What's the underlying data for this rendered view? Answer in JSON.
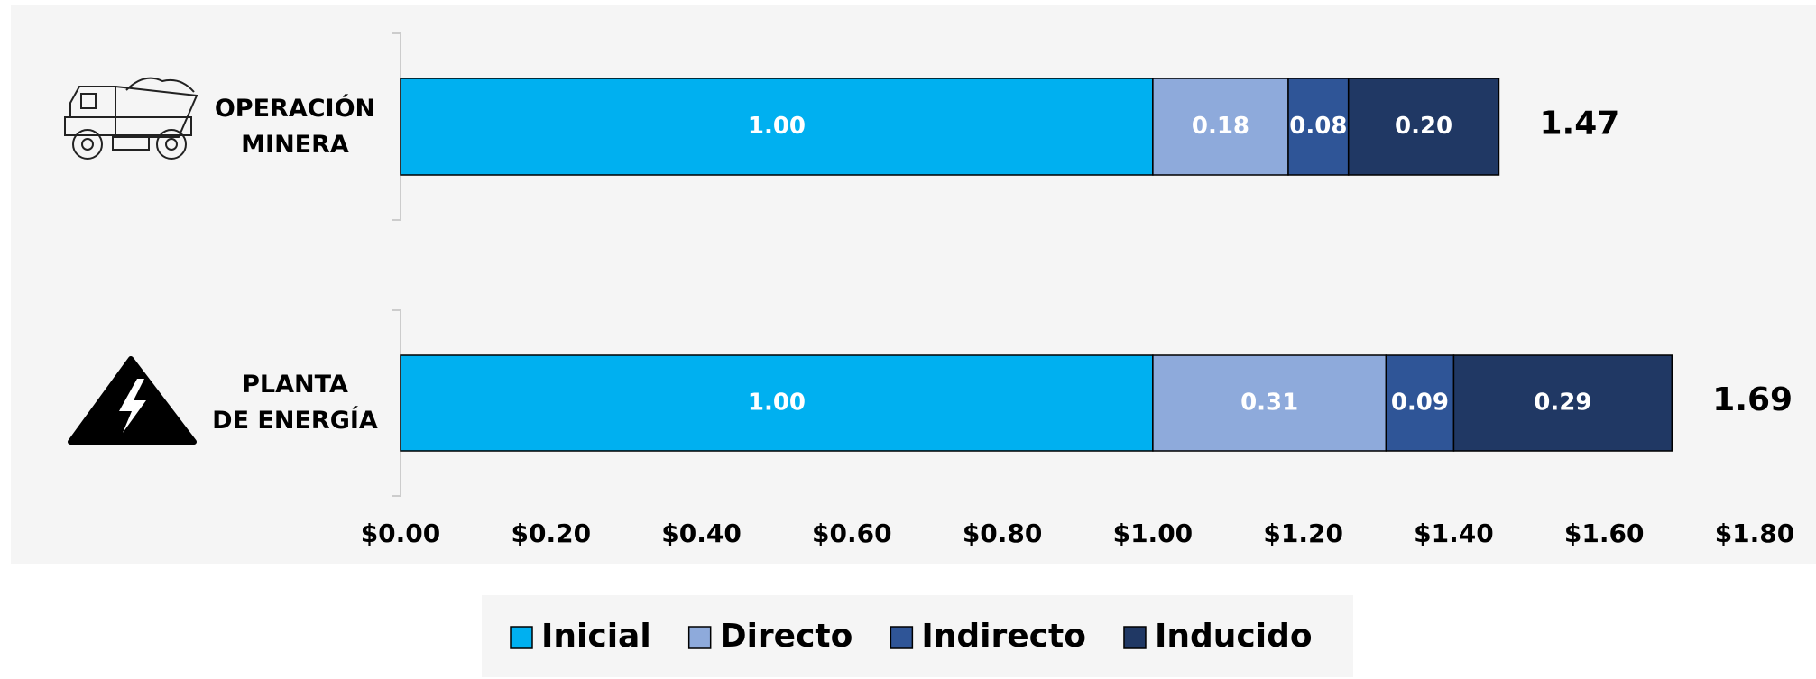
{
  "chart_data": {
    "type": "stacked-barh",
    "categories": [
      "OPERACIÓN\nMINERA",
      "PLANTA\nDE ENERGÍA"
    ],
    "series": [
      {
        "name": "Inicial",
        "color": "#00b0f0",
        "values": [
          1.0,
          1.0
        ],
        "value_labels": [
          "1.00",
          "1.00"
        ]
      },
      {
        "name": "Directo",
        "color": "#8eaadb",
        "values": [
          0.18,
          0.31
        ],
        "value_labels": [
          "0.18",
          "0.31"
        ]
      },
      {
        "name": "Indirecto",
        "color": "#2f5597",
        "values": [
          0.08,
          0.09
        ],
        "value_labels": [
          "0.08",
          "0.09"
        ]
      },
      {
        "name": "Inducido",
        "color": "#203864",
        "values": [
          0.2,
          0.29
        ],
        "value_labels": [
          "0.20",
          "0.29"
        ]
      }
    ],
    "totals": [
      1.47,
      1.69
    ],
    "xlim": [
      0,
      1.8
    ],
    "xticks": [
      {
        "value": 0,
        "label": "$0.00"
      },
      {
        "value": 0.2,
        "label": "$0.20"
      },
      {
        "value": 0.4,
        "label": "$0.40"
      },
      {
        "value": 0.6,
        "label": "$0.60"
      },
      {
        "value": 0.8,
        "label": "$0.80"
      },
      {
        "value": 1.0,
        "label": "$1.00"
      },
      {
        "value": 1.2,
        "label": "$1.20"
      },
      {
        "value": 1.4,
        "label": "$1.40"
      },
      {
        "value": 1.6,
        "label": "$1.60"
      },
      {
        "value": 1.8,
        "label": "$1.80"
      }
    ],
    "legend": "bottom"
  }
}
